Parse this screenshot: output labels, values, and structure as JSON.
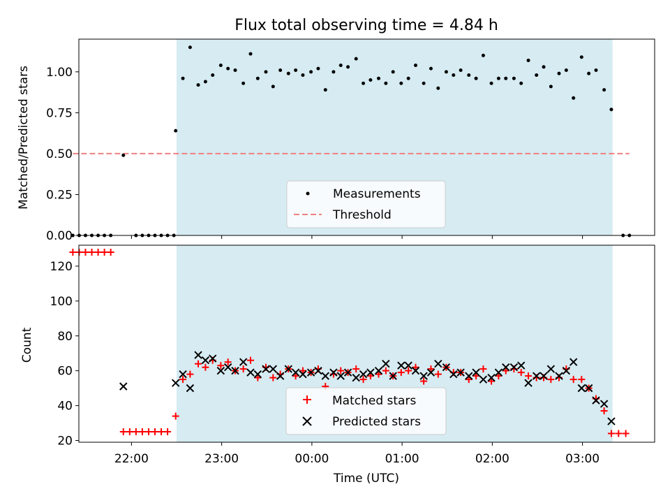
{
  "chart_data": [
    {
      "type": "scatter",
      "title": "Flux total observing time = 4.84 h",
      "xlabel": "",
      "ylabel": "Matched/Predicted stars",
      "ylim": [
        0,
        1.2
      ],
      "yticks": [
        0.0,
        0.25,
        0.5,
        0.75,
        1.0
      ],
      "ytick_labels": [
        "0.00",
        "0.25",
        "0.50",
        "0.75",
        "1.00"
      ],
      "x_unit": "hours since 00:00 UTC",
      "xlim_time": [
        "21:25",
        "03:48"
      ],
      "shaded_interval_time": [
        "22:30",
        "03:20"
      ],
      "shade_color": "#add8e6",
      "legend": {
        "position": "lower-center",
        "entries": [
          "Measurements",
          "Threshold"
        ]
      },
      "series": [
        {
          "name": "Measurements",
          "marker": "dot",
          "color": "#000000",
          "points": [
            [
              -2.65,
              0
            ],
            [
              -2.58,
              0
            ],
            [
              -2.51,
              0
            ],
            [
              -2.44,
              0
            ],
            [
              -2.37,
              0
            ],
            [
              -2.3,
              0
            ],
            [
              -2.23,
              0
            ],
            [
              -2.09,
              0.49
            ],
            [
              -1.95,
              0
            ],
            [
              -1.88,
              0
            ],
            [
              -1.81,
              0
            ],
            [
              -1.74,
              0
            ],
            [
              -1.67,
              0
            ],
            [
              -1.6,
              0
            ],
            [
              -1.53,
              0
            ],
            [
              -1.51,
              0.64
            ],
            [
              -1.43,
              0.96
            ],
            [
              -1.35,
              1.15
            ],
            [
              -1.26,
              0.92
            ],
            [
              -1.18,
              0.94
            ],
            [
              -1.1,
              0.98
            ],
            [
              -1.01,
              1.04
            ],
            [
              -0.93,
              1.02
            ],
            [
              -0.85,
              1.01
            ],
            [
              -0.76,
              0.93
            ],
            [
              -0.68,
              1.11
            ],
            [
              -0.6,
              0.96
            ],
            [
              -0.51,
              1.0
            ],
            [
              -0.43,
              0.91
            ],
            [
              -0.35,
              1.01
            ],
            [
              -0.26,
              0.99
            ],
            [
              -0.18,
              1.01
            ],
            [
              -0.1,
              0.98
            ],
            [
              -0.01,
              1.0
            ],
            [
              0.07,
              1.02
            ],
            [
              0.15,
              0.89
            ],
            [
              0.24,
              1.0
            ],
            [
              0.32,
              1.04
            ],
            [
              0.4,
              1.03
            ],
            [
              0.49,
              1.08
            ],
            [
              0.57,
              0.93
            ],
            [
              0.65,
              0.95
            ],
            [
              0.74,
              0.96
            ],
            [
              0.82,
              0.93
            ],
            [
              0.9,
              1.0
            ],
            [
              0.99,
              0.93
            ],
            [
              1.07,
              0.96
            ],
            [
              1.15,
              1.04
            ],
            [
              1.24,
              0.93
            ],
            [
              1.32,
              1.02
            ],
            [
              1.4,
              0.9
            ],
            [
              1.49,
              1.0
            ],
            [
              1.57,
              0.98
            ],
            [
              1.65,
              1.01
            ],
            [
              1.74,
              0.98
            ],
            [
              1.82,
              0.96
            ],
            [
              1.9,
              1.1
            ],
            [
              1.99,
              0.93
            ],
            [
              2.07,
              0.96
            ],
            [
              2.15,
              0.96
            ],
            [
              2.24,
              0.96
            ],
            [
              2.32,
              0.93
            ],
            [
              2.4,
              1.07
            ],
            [
              2.49,
              0.98
            ],
            [
              2.57,
              1.03
            ],
            [
              2.65,
              0.91
            ],
            [
              2.74,
              0.99
            ],
            [
              2.82,
              1.01
            ],
            [
              2.9,
              0.84
            ],
            [
              2.99,
              1.09
            ],
            [
              3.07,
              0.99
            ],
            [
              3.15,
              1.01
            ],
            [
              3.24,
              0.89
            ],
            [
              3.32,
              0.77
            ],
            [
              3.45,
              0
            ],
            [
              3.52,
              0
            ]
          ]
        },
        {
          "name": "Threshold",
          "marker": "dashed-line",
          "color": "#f08080",
          "x_range": [
            -2.65,
            3.52
          ],
          "value": 0.5
        }
      ]
    },
    {
      "type": "scatter",
      "title": "",
      "xlabel": "Time (UTC)",
      "ylabel": "Count",
      "ylim": [
        19,
        132
      ],
      "yticks": [
        20,
        40,
        60,
        80,
        100,
        120
      ],
      "ytick_labels": [
        "20",
        "40",
        "60",
        "80",
        "100",
        "120"
      ],
      "xticks": [
        -2,
        -1,
        0,
        1,
        2,
        3
      ],
      "xtick_labels": [
        "22:00",
        "23:00",
        "00:00",
        "01:00",
        "02:00",
        "03:00"
      ],
      "legend": {
        "position": "lower-center",
        "entries": [
          "Matched stars",
          "Predicted stars"
        ]
      },
      "series": [
        {
          "name": "Matched stars",
          "marker": "plus",
          "color": "#ff0000",
          "points": [
            [
              -2.65,
              128
            ],
            [
              -2.58,
              128
            ],
            [
              -2.51,
              128
            ],
            [
              -2.44,
              128
            ],
            [
              -2.37,
              128
            ],
            [
              -2.3,
              128
            ],
            [
              -2.23,
              128
            ],
            [
              -2.09,
              25
            ],
            [
              -2.02,
              25
            ],
            [
              -1.95,
              25
            ],
            [
              -1.88,
              25
            ],
            [
              -1.81,
              25
            ],
            [
              -1.74,
              25
            ],
            [
              -1.67,
              25
            ],
            [
              -1.6,
              25
            ],
            [
              -1.51,
              34
            ],
            [
              -1.43,
              55
            ],
            [
              -1.35,
              58
            ],
            [
              -1.26,
              64
            ],
            [
              -1.18,
              62
            ],
            [
              -1.1,
              66
            ],
            [
              -1.01,
              63
            ],
            [
              -0.93,
              65
            ],
            [
              -0.85,
              60
            ],
            [
              -0.76,
              61
            ],
            [
              -0.68,
              66
            ],
            [
              -0.6,
              56
            ],
            [
              -0.51,
              62
            ],
            [
              -0.43,
              56
            ],
            [
              -0.35,
              58
            ],
            [
              -0.26,
              61
            ],
            [
              -0.18,
              57
            ],
            [
              -0.1,
              60
            ],
            [
              -0.01,
              59
            ],
            [
              0.07,
              61
            ],
            [
              0.15,
              51
            ],
            [
              0.24,
              58
            ],
            [
              0.32,
              60
            ],
            [
              0.4,
              59
            ],
            [
              0.49,
              61
            ],
            [
              0.57,
              55
            ],
            [
              0.65,
              57
            ],
            [
              0.74,
              58
            ],
            [
              0.82,
              60
            ],
            [
              0.9,
              57
            ],
            [
              0.99,
              59
            ],
            [
              1.07,
              60
            ],
            [
              1.15,
              62
            ],
            [
              1.24,
              54
            ],
            [
              1.32,
              61
            ],
            [
              1.4,
              58
            ],
            [
              1.49,
              62
            ],
            [
              1.57,
              59
            ],
            [
              1.65,
              59
            ],
            [
              1.74,
              55
            ],
            [
              1.82,
              57
            ],
            [
              1.9,
              61
            ],
            [
              1.99,
              54
            ],
            [
              2.07,
              57
            ],
            [
              2.15,
              60
            ],
            [
              2.24,
              61
            ],
            [
              2.32,
              59
            ],
            [
              2.4,
              57
            ],
            [
              2.49,
              56
            ],
            [
              2.57,
              56
            ],
            [
              2.65,
              55
            ],
            [
              2.74,
              56
            ],
            [
              2.82,
              61
            ],
            [
              2.9,
              55
            ],
            [
              2.99,
              55
            ],
            [
              3.07,
              50
            ],
            [
              3.15,
              44
            ],
            [
              3.24,
              37
            ],
            [
              3.32,
              24
            ],
            [
              3.4,
              24
            ],
            [
              3.48,
              24
            ]
          ]
        },
        {
          "name": "Predicted stars",
          "marker": "x",
          "color": "#000000",
          "points": [
            [
              -2.09,
              51
            ],
            [
              -1.51,
              53
            ],
            [
              -1.43,
              58
            ],
            [
              -1.35,
              50
            ],
            [
              -1.26,
              69
            ],
            [
              -1.18,
              66
            ],
            [
              -1.1,
              67
            ],
            [
              -1.01,
              60
            ],
            [
              -0.93,
              62
            ],
            [
              -0.85,
              60
            ],
            [
              -0.76,
              65
            ],
            [
              -0.68,
              59
            ],
            [
              -0.6,
              58
            ],
            [
              -0.51,
              61
            ],
            [
              -0.43,
              61
            ],
            [
              -0.35,
              57
            ],
            [
              -0.26,
              61
            ],
            [
              -0.18,
              59
            ],
            [
              -0.1,
              58
            ],
            [
              -0.01,
              59
            ],
            [
              0.07,
              60
            ],
            [
              0.15,
              57
            ],
            [
              0.24,
              59
            ],
            [
              0.32,
              57
            ],
            [
              0.4,
              59
            ],
            [
              0.49,
              56
            ],
            [
              0.57,
              58
            ],
            [
              0.65,
              59
            ],
            [
              0.74,
              60
            ],
            [
              0.82,
              64
            ],
            [
              0.9,
              57
            ],
            [
              0.99,
              63
            ],
            [
              1.07,
              63
            ],
            [
              1.15,
              60
            ],
            [
              1.24,
              57
            ],
            [
              1.32,
              59
            ],
            [
              1.4,
              64
            ],
            [
              1.49,
              62
            ],
            [
              1.57,
              58
            ],
            [
              1.65,
              59
            ],
            [
              1.74,
              57
            ],
            [
              1.82,
              59
            ],
            [
              1.9,
              55
            ],
            [
              1.99,
              56
            ],
            [
              2.07,
              59
            ],
            [
              2.15,
              62
            ],
            [
              2.24,
              62
            ],
            [
              2.32,
              63
            ],
            [
              2.4,
              53
            ],
            [
              2.49,
              57
            ],
            [
              2.57,
              57
            ],
            [
              2.65,
              61
            ],
            [
              2.74,
              57
            ],
            [
              2.82,
              60
            ],
            [
              2.9,
              65
            ],
            [
              2.99,
              50
            ],
            [
              3.07,
              50
            ],
            [
              3.15,
              43
            ],
            [
              3.24,
              41
            ],
            [
              3.32,
              31
            ]
          ]
        }
      ]
    }
  ]
}
